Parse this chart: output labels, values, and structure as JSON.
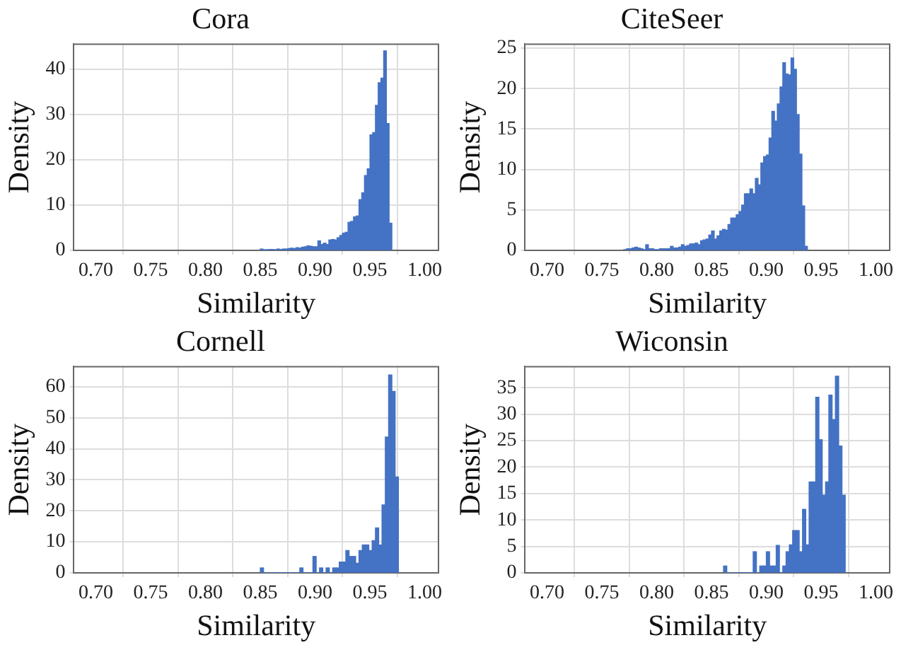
{
  "chart_data": [
    {
      "type": "histogram",
      "title": "Cora",
      "xlabel": "Similarity",
      "ylabel": "Density",
      "color": "#4472c4",
      "bins": [
        0.85,
        0.8525,
        0.855,
        0.8575,
        0.86,
        0.8625,
        0.865,
        0.8675,
        0.87,
        0.8725,
        0.875,
        0.8775,
        0.88,
        0.8825,
        0.885,
        0.8875,
        0.89,
        0.8925,
        0.895,
        0.8975,
        0.9,
        0.9025,
        0.905,
        0.9075,
        0.91,
        0.9125,
        0.915,
        0.9175,
        0.92,
        0.9225,
        0.925,
        0.9275,
        0.93,
        0.9325,
        0.935,
        0.9375,
        0.94,
        0.9425,
        0.945,
        0.9475,
        0.95,
        0.9525,
        0.955,
        0.9575,
        0.96,
        0.9625,
        0.965,
        0.9675,
        0.97
      ],
      "values": [
        0.3,
        0.1,
        0.1,
        0.2,
        0.2,
        0.1,
        0.3,
        0.2,
        0.3,
        0.3,
        0.4,
        0.5,
        0.4,
        0.6,
        0.5,
        0.7,
        0.8,
        1.0,
        0.9,
        0.8,
        0.8,
        2.1,
        1.3,
        1.6,
        1.3,
        2.3,
        2.4,
        2.3,
        2.8,
        3.3,
        3.8,
        4.0,
        6.2,
        6.4,
        7.4,
        7.6,
        11.2,
        12.7,
        16.5,
        18,
        25.5,
        26,
        32,
        37,
        38,
        44,
        28,
        6
      ],
      "xlim": [
        0.68,
        1.0125
      ],
      "xticks": [
        {
          "value": 0.7,
          "label": "0.70"
        },
        {
          "value": 0.75,
          "label": "0.75"
        },
        {
          "value": 0.8,
          "label": "0.80"
        },
        {
          "value": 0.85,
          "label": "0.85"
        },
        {
          "value": 0.9,
          "label": "0.90"
        },
        {
          "value": 0.95,
          "label": "0.95"
        },
        {
          "value": 1.0,
          "label": "1.00"
        }
      ],
      "ylim": [
        0,
        45.5
      ],
      "yticks": [
        0,
        10,
        20,
        30,
        40
      ],
      "grid": true,
      "legend": false
    },
    {
      "type": "histogram",
      "title": "CiteSeer",
      "xlabel": "Similarity",
      "ylabel": "Density",
      "color": "#4472c4",
      "bins": [
        0.77,
        0.7725,
        0.775,
        0.7775,
        0.78,
        0.7825,
        0.785,
        0.7875,
        0.79,
        0.7925,
        0.795,
        0.7975,
        0.8,
        0.8025,
        0.805,
        0.8075,
        0.81,
        0.8125,
        0.815,
        0.8175,
        0.82,
        0.8225,
        0.825,
        0.8275,
        0.83,
        0.8325,
        0.835,
        0.8375,
        0.84,
        0.8425,
        0.845,
        0.8475,
        0.85,
        0.8525,
        0.855,
        0.8575,
        0.86,
        0.8625,
        0.865,
        0.8675,
        0.87,
        0.8725,
        0.875,
        0.8775,
        0.88,
        0.8825,
        0.885,
        0.8875,
        0.89,
        0.8925,
        0.895,
        0.8975,
        0.9,
        0.9025,
        0.905,
        0.9075,
        0.91,
        0.9125,
        0.915,
        0.9175,
        0.92,
        0.9225,
        0.925,
        0.9275,
        0.93,
        0.9325,
        0.935,
        0.9375
      ],
      "values": [
        0.1,
        0.2,
        0.2,
        0.3,
        0.4,
        0.3,
        0.2,
        0.1,
        0.7,
        0.2,
        0.2,
        0.1,
        0.1,
        0.2,
        0.2,
        0.2,
        0.2,
        0.5,
        0.3,
        0.3,
        0.4,
        0.7,
        0.5,
        0.6,
        0.8,
        0.8,
        0.9,
        0.7,
        1.2,
        1.3,
        1.4,
        1.9,
        2.4,
        1.4,
        1.8,
        2.4,
        2.6,
        2.5,
        3.2,
        4.0,
        4.0,
        4.4,
        4.8,
        5.6,
        7.0,
        7.0,
        7.6,
        7.0,
        8.9,
        8.1,
        10.8,
        11.6,
        11.8,
        13.9,
        17.2,
        16.0,
        18.1,
        20.2,
        23.2,
        21.8,
        21.7,
        23.8,
        22.4,
        16.8,
        11.9,
        5.5,
        0.5
      ],
      "xlim": [
        0.68,
        1.0125
      ],
      "xticks": [
        {
          "value": 0.7,
          "label": "0.70"
        },
        {
          "value": 0.75,
          "label": "0.75"
        },
        {
          "value": 0.8,
          "label": "0.80"
        },
        {
          "value": 0.85,
          "label": "0.85"
        },
        {
          "value": 0.9,
          "label": "0.90"
        },
        {
          "value": 0.95,
          "label": "0.95"
        },
        {
          "value": 1.0,
          "label": "1.00"
        }
      ],
      "ylim": [
        0,
        25.5
      ],
      "yticks": [
        0,
        5,
        10,
        15,
        20,
        25
      ],
      "grid": true,
      "legend": false
    },
    {
      "type": "histogram",
      "title": "Cornell",
      "xlabel": "Similarity",
      "ylabel": "Density",
      "color": "#4472c4",
      "bins": [
        0.85,
        0.853,
        0.856,
        0.859,
        0.862,
        0.865,
        0.868,
        0.871,
        0.874,
        0.877,
        0.88,
        0.883,
        0.886,
        0.889,
        0.892,
        0.895,
        0.898,
        0.901,
        0.904,
        0.907,
        0.91,
        0.913,
        0.916,
        0.919,
        0.922,
        0.925,
        0.928,
        0.931,
        0.934,
        0.937,
        0.94,
        0.943,
        0.946,
        0.949,
        0.952,
        0.955,
        0.958,
        0.961,
        0.964,
        0.967,
        0.97,
        0.973,
        0.976
      ],
      "values": [
        1.6,
        0,
        0,
        0,
        0,
        0,
        0,
        0,
        0,
        0,
        0,
        0,
        1.6,
        0,
        0,
        0,
        5.3,
        0,
        1.6,
        0,
        1.6,
        0,
        1.6,
        1.6,
        3.5,
        3.5,
        7.2,
        5.3,
        5.3,
        3.1,
        7.2,
        9,
        9,
        7.2,
        10.4,
        14.5,
        9,
        21.9,
        43.8,
        63.8,
        58.5,
        30.9
      ],
      "xlim": [
        0.68,
        1.0125
      ],
      "xticks": [
        {
          "value": 0.7,
          "label": "0.70"
        },
        {
          "value": 0.75,
          "label": "0.75"
        },
        {
          "value": 0.8,
          "label": "0.80"
        },
        {
          "value": 0.85,
          "label": "0.85"
        },
        {
          "value": 0.9,
          "label": "0.90"
        },
        {
          "value": 0.95,
          "label": "0.95"
        },
        {
          "value": 1.0,
          "label": "1.00"
        }
      ],
      "ylim": [
        0,
        66.5
      ],
      "yticks": [
        0,
        10,
        20,
        30,
        40,
        50,
        60
      ],
      "grid": true,
      "legend": false
    },
    {
      "type": "histogram",
      "title": "Wiconsin",
      "xlabel": "Similarity",
      "ylabel": "Density",
      "color": "#4472c4",
      "bins": [
        0.861,
        0.864,
        0.867,
        0.87,
        0.873,
        0.876,
        0.879,
        0.882,
        0.885,
        0.888,
        0.891,
        0.894,
        0.897,
        0.9,
        0.903,
        0.906,
        0.909,
        0.912,
        0.915,
        0.918,
        0.921,
        0.924,
        0.927,
        0.93,
        0.933,
        0.936,
        0.939,
        0.942,
        0.945,
        0.948,
        0.951,
        0.954,
        0.957,
        0.96,
        0.963,
        0.966,
        0.969,
        0.972
      ],
      "values": [
        1.3,
        0,
        0,
        0,
        0,
        0,
        0,
        0,
        0,
        4,
        0,
        1.3,
        1.3,
        4,
        1.3,
        1.3,
        5.2,
        0,
        1.3,
        4,
        5.3,
        8,
        8,
        4,
        12,
        5.3,
        17.2,
        17.2,
        33.2,
        25.2,
        14.7,
        17.2,
        33.6,
        29,
        37.2,
        24,
        14.7
      ],
      "xlim": [
        0.68,
        1.0125
      ],
      "xticks": [
        {
          "value": 0.7,
          "label": "0.70"
        },
        {
          "value": 0.75,
          "label": "0.75"
        },
        {
          "value": 0.8,
          "label": "0.80"
        },
        {
          "value": 0.85,
          "label": "0.85"
        },
        {
          "value": 0.9,
          "label": "0.90"
        },
        {
          "value": 0.95,
          "label": "0.95"
        },
        {
          "value": 1.0,
          "label": "1.00"
        }
      ],
      "ylim": [
        0,
        39
      ],
      "yticks": [
        0,
        5,
        10,
        15,
        20,
        25,
        30,
        35
      ],
      "grid": true,
      "legend": false
    }
  ]
}
